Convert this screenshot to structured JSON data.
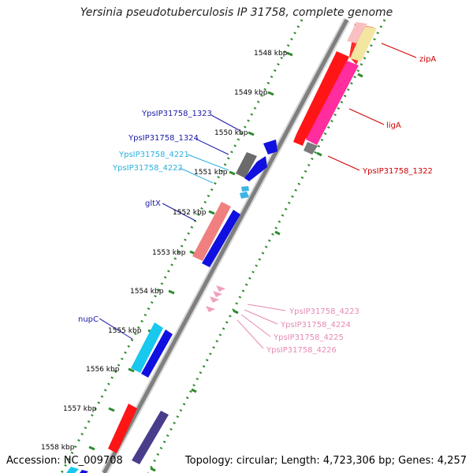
{
  "title": "Yersinia pseudotuberculosis IP 31758, complete genome",
  "footer": {
    "accession": "Accession: NC_009708",
    "stats": "Topology: circular; Length: 4,723,306 bp; Genes: 4,257"
  },
  "colors": {
    "backbone": "#7f7f7f",
    "tick": "#2e8b2e",
    "forward_label": "#1a1aa8",
    "cyan_label": "#2ab0e0",
    "reverse_label": "#cc0000",
    "pink_label": "#e68ab4"
  },
  "scale": [
    "1548 kbp",
    "1549 kbp",
    "1550 kbp",
    "1551 kbp",
    "1552 kbp",
    "1553 kbp",
    "1554 kbp",
    "1555 kbp",
    "1556 kbp",
    "1557 kbp",
    "1558 kbp"
  ],
  "gene_labels": {
    "ypsip31758_1323": "YpsIP31758_1323",
    "ypsip31758_1324": "YpsIP31758_1324",
    "ypsip31758_4221": "YpsIP31758_4221",
    "ypsip31758_4222": "YpsIP31758_4222",
    "gltx": "gltX",
    "nupc": "nupC",
    "zipa": "zipA",
    "liga": "ligA",
    "ypsip31758_1322": "YpsIP31758_1322",
    "ypsip31758_4223": "YpsIP31758_4223",
    "ypsip31758_4224": "YpsIP31758_4224",
    "ypsip31758_4225": "YpsIP31758_4225",
    "ypsip31758_4226": "YpsIP31758_4226"
  }
}
